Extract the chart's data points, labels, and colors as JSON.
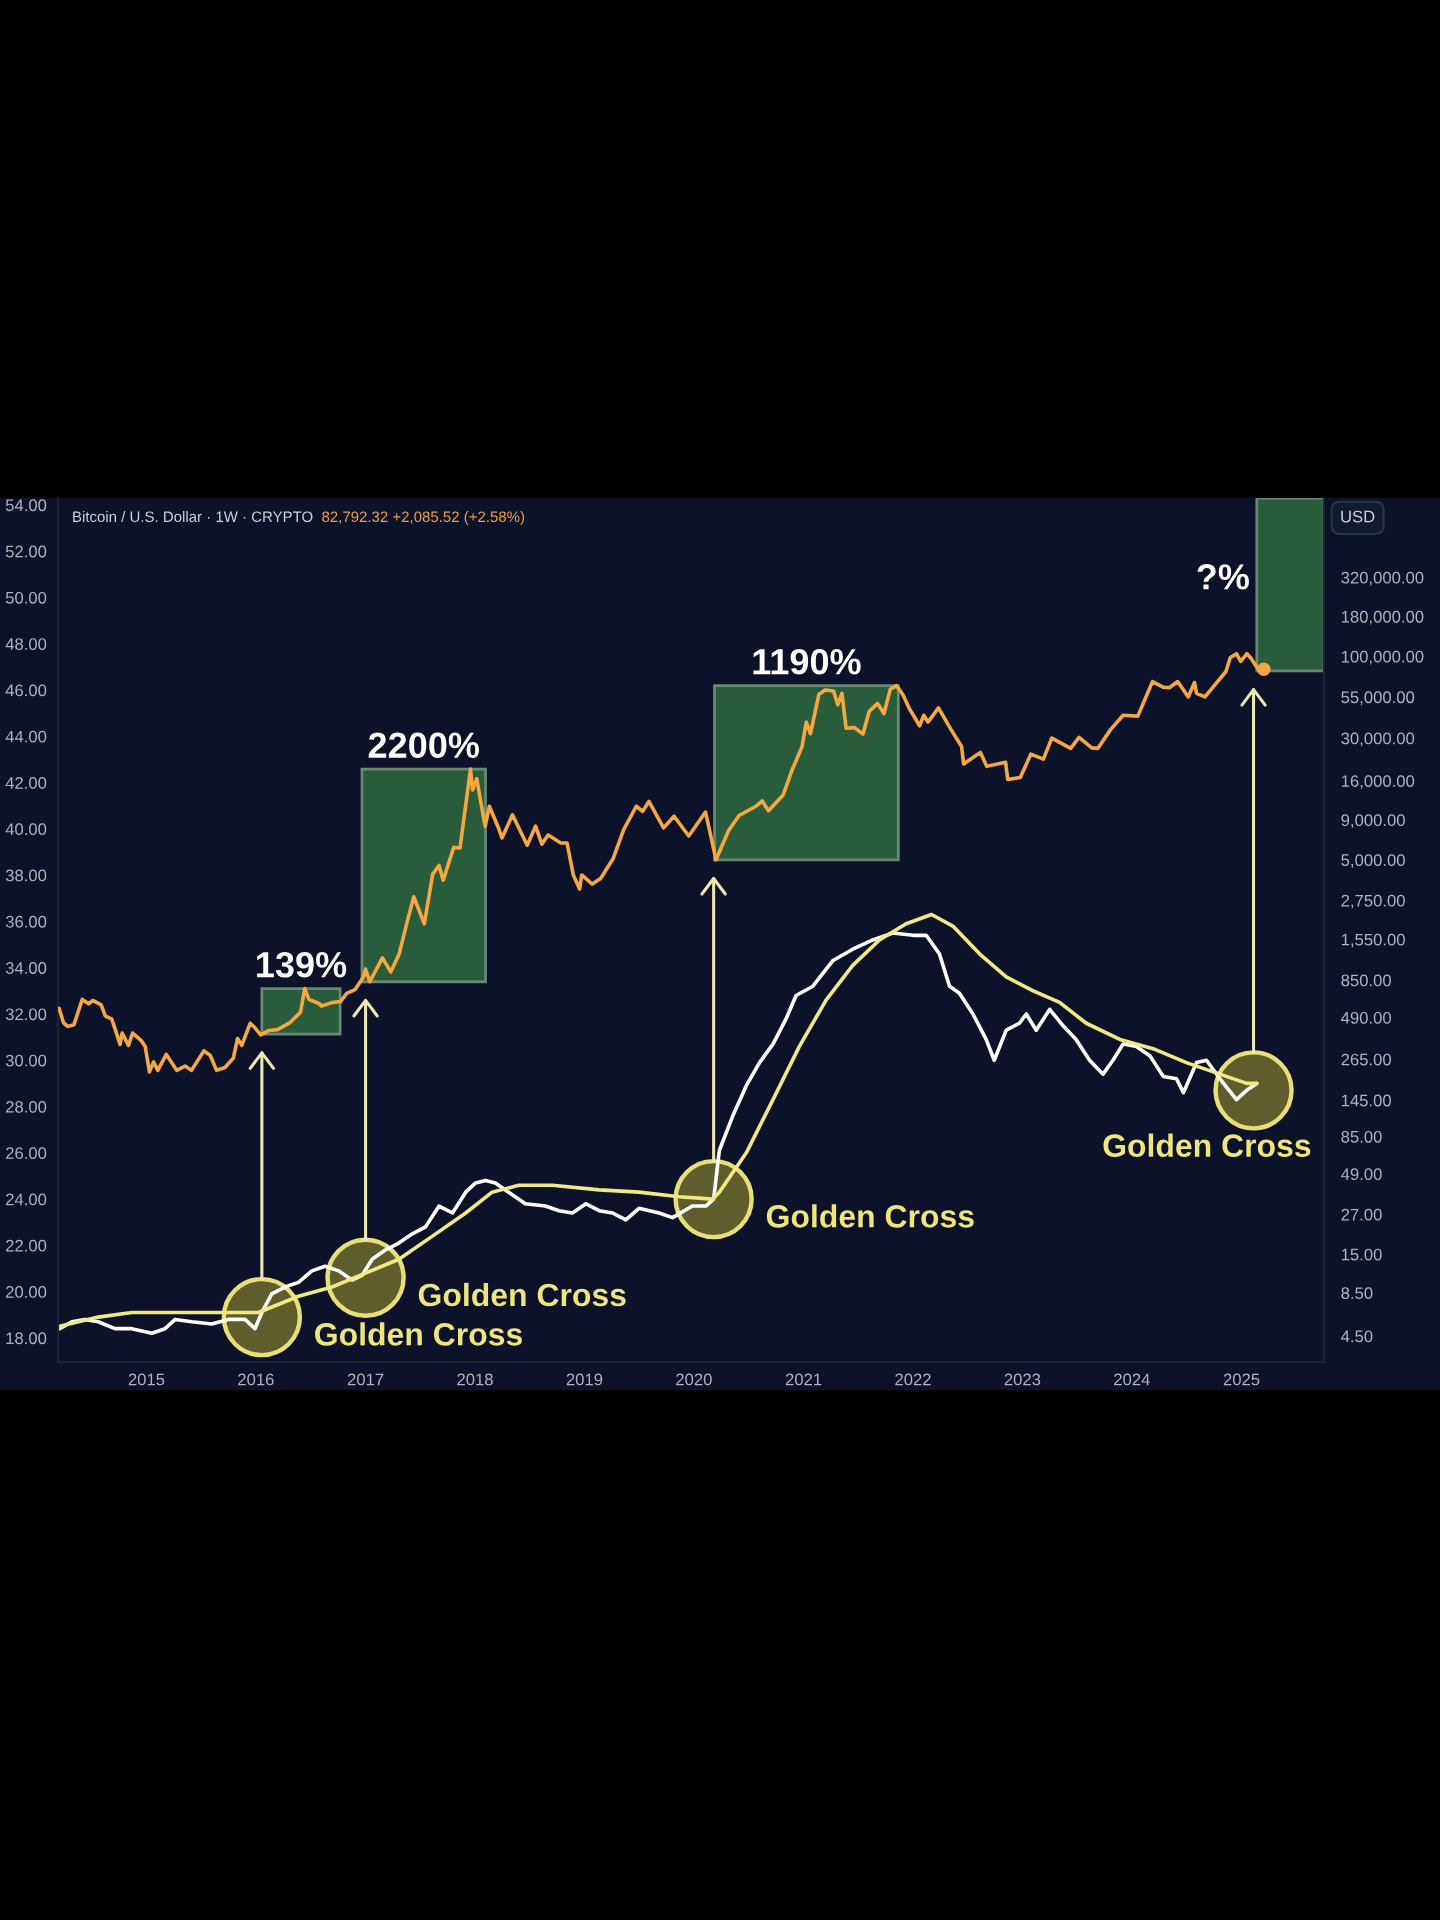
{
  "chart_data": {
    "type": "line",
    "title": "Bitcoin / U.S. Dollar · 1W · CRYPTO",
    "subtitle": "82,792.32 +2,085.52 (+2.58%)",
    "y2label": "USD",
    "log": "y2",
    "xlim": [
      "2014-03-12",
      "2025-10-03"
    ],
    "xticks": [
      {
        "value": "2015-01-01",
        "label": "2015"
      },
      {
        "value": "2016-01-01",
        "label": "2016"
      },
      {
        "value": "2017-01-01",
        "label": "2017"
      },
      {
        "value": "2018-01-01",
        "label": "2018"
      },
      {
        "value": "2019-01-01",
        "label": "2019"
      },
      {
        "value": "2020-01-01",
        "label": "2020"
      },
      {
        "value": "2021-01-01",
        "label": "2021"
      },
      {
        "value": "2022-01-01",
        "label": "2022"
      },
      {
        "value": "2023-01-01",
        "label": "2023"
      },
      {
        "value": "2024-01-01",
        "label": "2024"
      },
      {
        "value": "2025-01-01",
        "label": "2025"
      }
    ],
    "ylim": [
      16.96,
      54.3
    ],
    "yticks": [
      {
        "value": 18,
        "label": "18.00"
      },
      {
        "value": 20,
        "label": "20.00"
      },
      {
        "value": 22,
        "label": "22.00"
      },
      {
        "value": 24,
        "label": "24.00"
      },
      {
        "value": 26,
        "label": "26.00"
      },
      {
        "value": 28,
        "label": "28.00"
      },
      {
        "value": 30,
        "label": "30.00"
      },
      {
        "value": 32,
        "label": "32.00"
      },
      {
        "value": 34,
        "label": "34.00"
      },
      {
        "value": 36,
        "label": "36.00"
      },
      {
        "value": 38,
        "label": "38.00"
      },
      {
        "value": 40,
        "label": "40.00"
      },
      {
        "value": 42,
        "label": "42.00"
      },
      {
        "value": 44,
        "label": "44.00"
      },
      {
        "value": 46,
        "label": "46.00"
      },
      {
        "value": 48,
        "label": "48.00"
      },
      {
        "value": 50,
        "label": "50.00"
      },
      {
        "value": 52,
        "label": "52.00"
      },
      {
        "value": 54,
        "label": "54.00"
      }
    ],
    "y2lim": [
      3.07,
      1030000
    ],
    "y2ticks": [
      {
        "value": 4.5,
        "label": "4.50"
      },
      {
        "value": 8.5,
        "label": "8.50"
      },
      {
        "value": 15,
        "label": "15.00"
      },
      {
        "value": 27,
        "label": "27.00"
      },
      {
        "value": 49,
        "label": "49.00"
      },
      {
        "value": 85,
        "label": "85.00"
      },
      {
        "value": 145,
        "label": "145.00"
      },
      {
        "value": 265,
        "label": "265.00"
      },
      {
        "value": 490,
        "label": "490.00"
      },
      {
        "value": 850,
        "label": "850.00"
      },
      {
        "value": 1550,
        "label": "1,550.00"
      },
      {
        "value": 2750,
        "label": "2,750.00"
      },
      {
        "value": 5000,
        "label": "5,000.00"
      },
      {
        "value": 9000,
        "label": "9,000.00"
      },
      {
        "value": 16000,
        "label": "16,000.00"
      },
      {
        "value": 30000,
        "label": "30,000.00"
      },
      {
        "value": 55000,
        "label": "55,000.00"
      },
      {
        "value": 100000,
        "label": "100,000.00"
      },
      {
        "value": 180000,
        "label": "180,000.00"
      },
      {
        "value": 320000,
        "label": "320,000.00"
      }
    ],
    "series": [
      {
        "axis": "y2",
        "color": "#f5a742",
        "x": [
          "2014-03-16",
          "2014-03-30",
          "2014-04-13",
          "2014-05-04",
          "2014-06-01",
          "2014-06-22",
          "2014-07-06",
          "2014-08-03",
          "2014-08-17",
          "2014-09-07",
          "2014-09-21",
          "2014-10-05",
          "2014-10-12",
          "2014-11-02",
          "2014-11-16",
          "2014-12-14",
          "2014-12-28",
          "2015-01-11",
          "2015-01-25",
          "2015-02-08",
          "2015-03-08",
          "2015-04-12",
          "2015-05-10",
          "2015-05-31",
          "2015-07-12",
          "2015-08-02",
          "2015-08-23",
          "2015-09-20",
          "2015-10-18",
          "2015-11-01",
          "2015-11-15",
          "2015-12-13",
          "2015-12-27",
          "2016-01-17",
          "2016-02-14",
          "2016-03-13",
          "2016-04-24",
          "2016-05-29",
          "2016-06-12",
          "2016-06-26",
          "2016-07-31",
          "2016-08-07",
          "2016-09-11",
          "2016-10-09",
          "2016-10-30",
          "2016-11-27",
          "2016-12-25",
          "2017-01-01",
          "2017-01-15",
          "2017-02-26",
          "2017-03-26",
          "2017-04-23",
          "2017-05-21",
          "2017-06-11",
          "2017-07-16",
          "2017-08-13",
          "2017-09-03",
          "2017-09-17",
          "2017-10-22",
          "2017-11-12",
          "2017-11-26",
          "2017-12-17",
          "2017-12-24",
          "2018-01-07",
          "2018-01-21",
          "2018-02-04",
          "2018-02-18",
          "2018-03-18",
          "2018-04-01",
          "2018-05-06",
          "2018-06-24",
          "2018-07-22",
          "2018-08-12",
          "2018-09-02",
          "2018-10-14",
          "2018-11-04",
          "2018-11-25",
          "2018-12-16",
          "2018-12-23",
          "2019-01-27",
          "2019-02-24",
          "2019-04-07",
          "2019-05-12",
          "2019-06-23",
          "2019-07-14",
          "2019-08-04",
          "2019-09-22",
          "2019-10-27",
          "2019-12-15",
          "2020-02-09",
          "2020-03-15",
          "2020-04-26",
          "2020-05-31",
          "2020-07-26",
          "2020-08-16",
          "2020-09-06",
          "2020-10-25",
          "2020-11-22",
          "2020-12-27",
          "2021-01-10",
          "2021-01-24",
          "2021-02-21",
          "2021-03-14",
          "2021-04-11",
          "2021-04-25",
          "2021-05-09",
          "2021-05-23",
          "2021-06-20",
          "2021-07-18",
          "2021-08-08",
          "2021-09-05",
          "2021-09-26",
          "2021-10-17",
          "2021-11-07",
          "2021-11-28",
          "2021-12-19",
          "2022-01-23",
          "2022-02-06",
          "2022-02-20",
          "2022-03-27",
          "2022-05-08",
          "2022-06-12",
          "2022-06-19",
          "2022-07-31",
          "2022-08-14",
          "2022-09-04",
          "2022-11-06",
          "2022-11-13",
          "2022-12-25",
          "2023-01-29",
          "2023-03-12",
          "2023-04-09",
          "2023-06-11",
          "2023-07-09",
          "2023-08-20",
          "2023-09-10",
          "2023-10-22",
          "2023-12-03",
          "2024-01-21",
          "2024-03-10",
          "2024-04-14",
          "2024-05-05",
          "2024-06-02",
          "2024-07-07",
          "2024-07-28",
          "2024-08-04",
          "2024-09-01",
          "2024-09-29",
          "2024-11-10",
          "2024-11-24",
          "2024-12-15",
          "2024-12-29",
          "2025-01-19",
          "2025-02-02",
          "2025-02-23",
          "2025-03-09",
          "2025-03-16"
        ],
        "values": [
          560,
          455,
          430,
          440,
          640,
          600,
          630,
          590,
          500,
          480,
          400,
          330,
          390,
          325,
          390,
          350,
          320,
          220,
          255,
          225,
          285,
          225,
          240,
          225,
          300,
          280,
          225,
          235,
          270,
          360,
          325,
          450,
          425,
          380,
          405,
          410,
          455,
          530,
          750,
          640,
          600,
          580,
          610,
          620,
          700,
          740,
          890,
          1000,
          830,
          1180,
          960,
          1250,
          2050,
          2900,
          1950,
          4050,
          4600,
          3700,
          6000,
          5950,
          9500,
          19000,
          14000,
          16500,
          11500,
          8200,
          11000,
          8200,
          6900,
          9700,
          6200,
          8200,
          6300,
          7200,
          6400,
          6400,
          4000,
          3250,
          4000,
          3500,
          3800,
          5100,
          7800,
          11000,
          10200,
          11800,
          8000,
          9500,
          7100,
          10100,
          5000,
          7700,
          9600,
          11000,
          11900,
          10300,
          13000,
          18400,
          26500,
          38000,
          32000,
          57000,
          61000,
          60000,
          49000,
          58000,
          34700,
          35000,
          31800,
          44500,
          50000,
          43000,
          61500,
          65000,
          57000,
          46700,
          36000,
          42000,
          38000,
          46800,
          34000,
          26500,
          20500,
          23300,
          24300,
          19800,
          21000,
          16300,
          16800,
          23700,
          22000,
          30000,
          25800,
          30300,
          26000,
          25800,
          34000,
          42000,
          41500,
          69000,
          63500,
          63000,
          69000,
          55000,
          68000,
          58000,
          55000,
          64000,
          80000,
          98000,
          104000,
          93000,
          104000,
          97000,
          84000,
          80700,
          82792.32
        ]
      },
      {
        "axis": "y",
        "color": "#ffffff",
        "x": [
          "2014-03-18",
          "2014-04-27",
          "2014-06-10",
          "2014-07-24",
          "2014-09-18",
          "2014-11-13",
          "2015-01-19",
          "2015-03-04",
          "2015-04-07",
          "2015-06-01",
          "2015-08-07",
          "2015-10-01",
          "2015-11-26",
          "2015-12-29",
          "2016-01-21",
          "2016-02-23",
          "2016-04-07",
          "2016-05-22",
          "2016-07-06",
          "2016-08-19",
          "2016-10-03",
          "2016-11-17",
          "2016-12-20",
          "2017-01-23",
          "2017-03-08",
          "2017-04-22",
          "2017-06-06",
          "2017-07-20",
          "2017-09-03",
          "2017-10-18",
          "2017-12-01",
          "2018-01-03",
          "2018-02-05",
          "2018-03-10",
          "2018-04-23",
          "2018-06-18",
          "2018-08-24",
          "2018-10-08",
          "2018-11-22",
          "2019-01-06",
          "2019-02-19",
          "2019-04-05",
          "2019-05-19",
          "2019-07-02",
          "2019-09-07",
          "2019-10-22",
          "2019-12-27",
          "2020-02-10",
          "2020-03-07",
          "2020-03-26",
          "2020-05-10",
          "2020-06-24",
          "2020-08-07",
          "2020-09-21",
          "2020-11-04",
          "2020-12-07",
          "2021-02-01",
          "2021-04-08",
          "2021-06-14",
          "2021-08-20",
          "2021-10-26",
          "2022-01-01",
          "2022-02-14",
          "2022-03-30",
          "2022-05-03",
          "2022-06-05",
          "2022-07-20",
          "2022-09-02",
          "2022-09-29",
          "2022-11-08",
          "2022-12-22",
          "2023-01-14",
          "2023-02-16",
          "2023-04-02",
          "2023-05-16",
          "2023-06-29",
          "2023-08-13",
          "2023-09-27",
          "2023-10-30",
          "2023-12-03",
          "2024-01-16",
          "2024-03-01",
          "2024-04-15",
          "2024-05-29",
          "2024-06-21",
          "2024-08-04",
          "2024-09-06",
          "2024-10-21",
          "2024-12-15",
          "2025-01-18",
          "2025-02-21"
        ],
        "values": [
          18.4,
          18.7,
          18.8,
          18.7,
          18.4,
          18.4,
          18.2,
          18.4,
          18.8,
          18.7,
          18.6,
          18.8,
          18.8,
          18.4,
          19.1,
          19.9,
          20.2,
          20.4,
          20.9,
          21.1,
          20.9,
          20.5,
          20.7,
          21.4,
          21.8,
          22.1,
          22.5,
          22.8,
          23.7,
          23.4,
          24.3,
          24.7,
          24.8,
          24.7,
          24.3,
          23.8,
          23.7,
          23.5,
          23.4,
          23.8,
          23.5,
          23.4,
          23.1,
          23.6,
          23.4,
          23.2,
          23.7,
          23.7,
          24.0,
          26.1,
          27.6,
          28.9,
          29.9,
          30.7,
          31.8,
          32.8,
          33.2,
          34.3,
          34.8,
          35.2,
          35.5,
          35.4,
          35.4,
          34.6,
          33.2,
          32.9,
          32.0,
          30.9,
          30.0,
          31.3,
          31.6,
          32.0,
          31.3,
          32.2,
          31.5,
          30.9,
          30.0,
          29.4,
          30.0,
          30.7,
          30.6,
          30.2,
          29.3,
          29.2,
          28.6,
          29.9,
          30.0,
          29.2,
          28.3,
          28.7,
          29.0
        ]
      },
      {
        "axis": "y",
        "color": "#f2ea80",
        "x": [
          "2014-03-18",
          "2014-07-24",
          "2014-11-13",
          "2015-03-26",
          "2015-08-29",
          "2016-01-10",
          "2016-05-22",
          "2016-09-11",
          "2017-01-01",
          "2017-04-22",
          "2017-08-12",
          "2017-12-01",
          "2018-02-27",
          "2018-05-27",
          "2018-09-16",
          "2019-02-19",
          "2019-07-02",
          "2019-11-13",
          "2020-03-04",
          "2020-03-26",
          "2020-06-24",
          "2020-09-21",
          "2020-12-18",
          "2021-03-17",
          "2021-06-14",
          "2021-09-11",
          "2021-12-09",
          "2022-03-04",
          "2022-05-14",
          "2022-08-11",
          "2022-11-08",
          "2023-02-06",
          "2023-05-05",
          "2023-08-02",
          "2023-11-22",
          "2024-03-12",
          "2024-07-01",
          "2024-10-21",
          "2025-01-18",
          "2025-02-21"
        ],
        "values": [
          18.5,
          18.9,
          19.1,
          19.1,
          19.1,
          19.1,
          19.8,
          20.2,
          20.8,
          21.4,
          22.4,
          23.4,
          24.3,
          24.6,
          24.6,
          24.4,
          24.3,
          24.1,
          24.0,
          24.3,
          26.0,
          28.3,
          30.6,
          32.6,
          34.1,
          35.2,
          35.9,
          36.3,
          35.8,
          34.6,
          33.6,
          33.0,
          32.5,
          31.6,
          30.9,
          30.5,
          29.9,
          29.4,
          29.0,
          29.0
        ]
      },
      {
        "type": "scatter",
        "axis": "y2",
        "color": "#f5a742",
        "marker": "circle",
        "x": [
          "2025-03-16"
        ],
        "values": [
          82792.32
        ]
      }
    ],
    "bands": [
      {
        "axis": "x",
        "from": "2016-01-21",
        "to": "2016-10-08",
        "label": "139%",
        "color": "#2e6a3e"
      },
      {
        "axis": "x",
        "from": "2016-12-20",
        "to": "2018-02-05",
        "label": "2200%",
        "color": "#2e6a3e"
      },
      {
        "axis": "x",
        "from": "2020-03-10",
        "to": "2021-11-13",
        "label": "1190%",
        "color": "#2e6a3e"
      },
      {
        "axis": "x",
        "from": "2025-02-21",
        "to": "2025-10-03",
        "label": "?%",
        "color": "#2e6a3e"
      }
    ],
    "annotations": [
      {
        "text": "Golden Cross",
        "x": "2016-01-21",
        "y": 18.9
      },
      {
        "text": "Golden Cross",
        "x": "2017-01-01",
        "y": 20.6
      },
      {
        "text": "Golden Cross",
        "x": "2020-03-07",
        "y": 24.0
      },
      {
        "text": "Golden Cross",
        "x": "2025-02-10",
        "y": 28.7
      }
    ]
  }
}
